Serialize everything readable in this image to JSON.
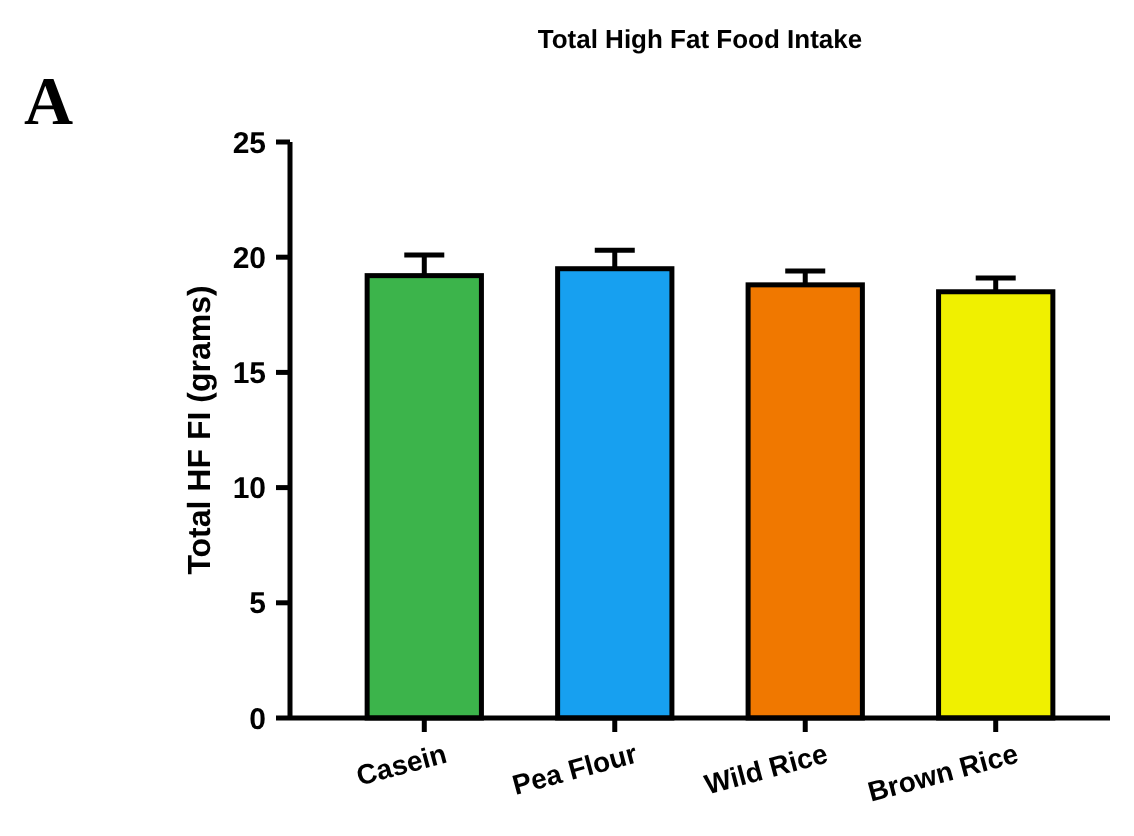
{
  "chart_data": {
    "type": "bar",
    "title": "Total High Fat Food Intake",
    "ylabel": "Total HF FI (grams)",
    "annotations": [
      "A"
    ],
    "categories": [
      "Casein",
      "Pea Flour",
      "Wild Rice",
      "Brown Rice"
    ],
    "values": [
      19.2,
      19.5,
      18.8,
      18.5
    ],
    "colors": [
      "#3cb44b",
      "#17a0f0",
      "#f07800",
      "#f0f000"
    ],
    "errors": [
      [
        19.2,
        20.1
      ],
      [
        19.5,
        20.3
      ],
      [
        18.8,
        19.4
      ],
      [
        18.5,
        19.1
      ]
    ],
    "ylim": [
      0,
      25
    ],
    "yticks": [
      0,
      5,
      10,
      15,
      20,
      25
    ],
    "grid": false
  }
}
